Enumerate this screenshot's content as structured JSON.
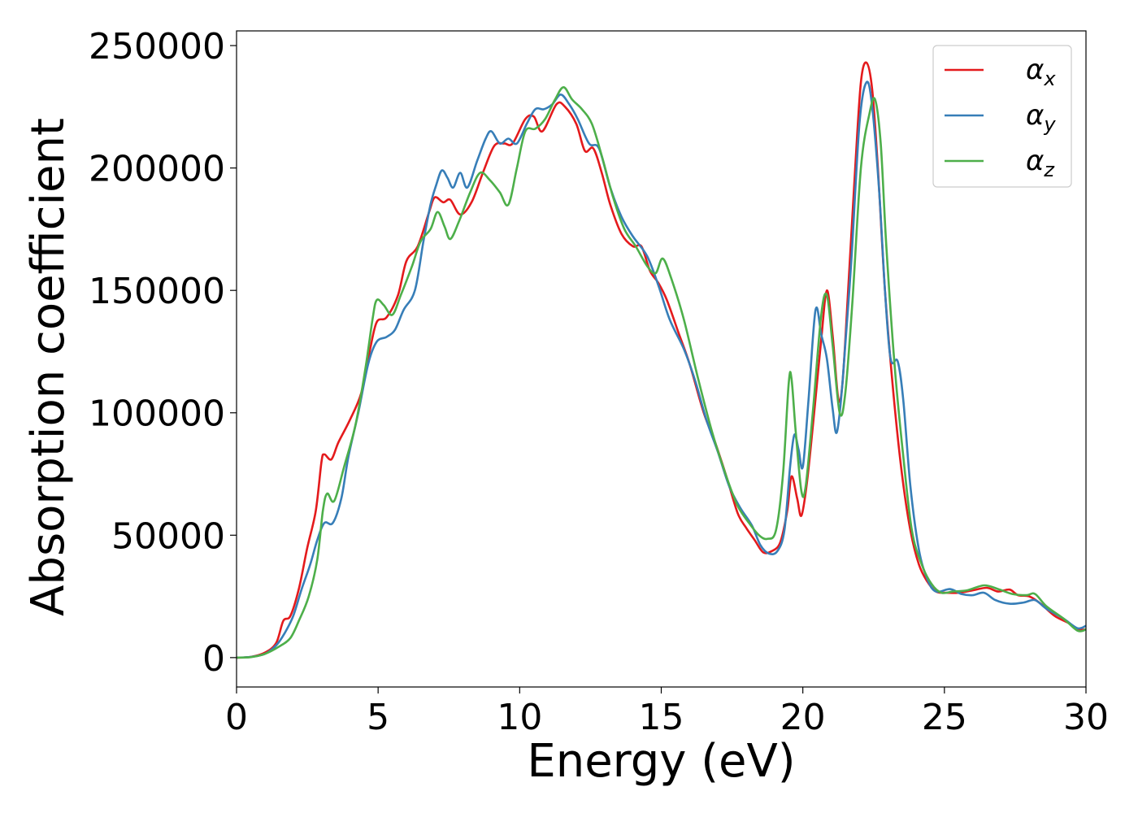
{
  "chart_data": {
    "type": "line",
    "title": "",
    "xlabel": "Energy (eV)",
    "ylabel": "Absorption coefficient",
    "xlim": [
      0,
      30
    ],
    "ylim": [
      -12000,
      256000
    ],
    "xticks": [
      0,
      5,
      10,
      15,
      20,
      25,
      30
    ],
    "yticks": [
      0,
      50000,
      100000,
      150000,
      200000,
      250000
    ],
    "grid": false,
    "legend_position": "top-right",
    "series": [
      {
        "name": "α",
        "subscript": "x",
        "color": "#e41a1c",
        "points": [
          [
            0,
            0
          ],
          [
            0.5,
            300
          ],
          [
            1.0,
            2000
          ],
          [
            1.4,
            6000
          ],
          [
            1.65,
            15000
          ],
          [
            1.9,
            17000
          ],
          [
            2.2,
            28000
          ],
          [
            2.5,
            45000
          ],
          [
            2.8,
            60000
          ],
          [
            3.0,
            80000
          ],
          [
            3.1,
            83000
          ],
          [
            3.35,
            81000
          ],
          [
            3.6,
            88000
          ],
          [
            4.0,
            97000
          ],
          [
            4.4,
            108000
          ],
          [
            4.7,
            125000
          ],
          [
            4.95,
            137000
          ],
          [
            5.3,
            139000
          ],
          [
            5.7,
            148000
          ],
          [
            6.0,
            162000
          ],
          [
            6.4,
            168000
          ],
          [
            6.8,
            182000
          ],
          [
            7.0,
            188000
          ],
          [
            7.3,
            186000
          ],
          [
            7.55,
            187000
          ],
          [
            7.9,
            181000
          ],
          [
            8.3,
            186000
          ],
          [
            8.7,
            198000
          ],
          [
            9.1,
            209000
          ],
          [
            9.45,
            210000
          ],
          [
            9.75,
            210000
          ],
          [
            10.2,
            220000
          ],
          [
            10.5,
            221000
          ],
          [
            10.8,
            215000
          ],
          [
            11.3,
            226000
          ],
          [
            11.6,
            225000
          ],
          [
            12.0,
            218000
          ],
          [
            12.3,
            207000
          ],
          [
            12.6,
            208000
          ],
          [
            12.9,
            198000
          ],
          [
            13.2,
            185000
          ],
          [
            13.6,
            173000
          ],
          [
            14.0,
            168000
          ],
          [
            14.3,
            168000
          ],
          [
            14.6,
            158000
          ],
          [
            14.9,
            153000
          ],
          [
            15.2,
            146000
          ],
          [
            15.6,
            133000
          ],
          [
            16.0,
            120000
          ],
          [
            16.5,
            100000
          ],
          [
            16.9,
            88000
          ],
          [
            17.3,
            74000
          ],
          [
            17.7,
            59000
          ],
          [
            18.0,
            53000
          ],
          [
            18.3,
            48000
          ],
          [
            18.6,
            43000
          ],
          [
            18.9,
            43500
          ],
          [
            19.2,
            47000
          ],
          [
            19.45,
            60000
          ],
          [
            19.6,
            74000
          ],
          [
            19.8,
            65000
          ],
          [
            19.95,
            58000
          ],
          [
            20.15,
            72000
          ],
          [
            20.4,
            100000
          ],
          [
            20.65,
            130000
          ],
          [
            20.85,
            150000
          ],
          [
            21.05,
            132000
          ],
          [
            21.25,
            106000
          ],
          [
            21.4,
            112000
          ],
          [
            21.6,
            150000
          ],
          [
            21.85,
            200000
          ],
          [
            22.05,
            235000
          ],
          [
            22.25,
            243000
          ],
          [
            22.45,
            232000
          ],
          [
            22.65,
            200000
          ],
          [
            22.9,
            150000
          ],
          [
            23.2,
            108000
          ],
          [
            23.5,
            75000
          ],
          [
            23.8,
            52000
          ],
          [
            24.1,
            38000
          ],
          [
            24.4,
            31000
          ],
          [
            24.7,
            27000
          ],
          [
            25.0,
            26500
          ],
          [
            25.5,
            26500
          ],
          [
            26.0,
            27500
          ],
          [
            26.5,
            28500
          ],
          [
            26.9,
            27000
          ],
          [
            27.3,
            27800
          ],
          [
            27.6,
            25500
          ],
          [
            28.0,
            25000
          ],
          [
            28.4,
            22000
          ],
          [
            28.9,
            17000
          ],
          [
            29.4,
            14000
          ],
          [
            29.7,
            11500
          ],
          [
            30.0,
            11500
          ]
        ]
      },
      {
        "name": "α",
        "subscript": "y",
        "color": "#377eb8",
        "points": [
          [
            0,
            0
          ],
          [
            0.5,
            300
          ],
          [
            1.0,
            1500
          ],
          [
            1.4,
            5000
          ],
          [
            1.7,
            10000
          ],
          [
            2.0,
            17000
          ],
          [
            2.3,
            28000
          ],
          [
            2.6,
            38000
          ],
          [
            2.85,
            48000
          ],
          [
            3.1,
            55000
          ],
          [
            3.4,
            55000
          ],
          [
            3.7,
            65000
          ],
          [
            3.95,
            82000
          ],
          [
            4.3,
            100000
          ],
          [
            4.65,
            120000
          ],
          [
            4.95,
            129000
          ],
          [
            5.3,
            131000
          ],
          [
            5.6,
            134000
          ],
          [
            5.9,
            142000
          ],
          [
            6.3,
            150000
          ],
          [
            6.6,
            170000
          ],
          [
            6.85,
            185000
          ],
          [
            7.05,
            193000
          ],
          [
            7.25,
            199000
          ],
          [
            7.45,
            196000
          ],
          [
            7.65,
            192000
          ],
          [
            7.9,
            198000
          ],
          [
            8.15,
            192000
          ],
          [
            8.5,
            203000
          ],
          [
            8.8,
            212000
          ],
          [
            9.0,
            215000
          ],
          [
            9.3,
            210000
          ],
          [
            9.6,
            212000
          ],
          [
            9.9,
            210000
          ],
          [
            10.25,
            218000
          ],
          [
            10.55,
            224000
          ],
          [
            10.85,
            224000
          ],
          [
            11.15,
            226000
          ],
          [
            11.45,
            230000
          ],
          [
            11.75,
            226000
          ],
          [
            12.05,
            220000
          ],
          [
            12.45,
            210000
          ],
          [
            12.8,
            208000
          ],
          [
            13.2,
            192000
          ],
          [
            13.6,
            180000
          ],
          [
            14.0,
            172000
          ],
          [
            14.5,
            164000
          ],
          [
            14.9,
            152000
          ],
          [
            15.3,
            138000
          ],
          [
            15.8,
            126000
          ],
          [
            16.2,
            113000
          ],
          [
            16.6,
            97000
          ],
          [
            17.0,
            84000
          ],
          [
            17.4,
            70000
          ],
          [
            17.8,
            61000
          ],
          [
            18.2,
            54000
          ],
          [
            18.5,
            46000
          ],
          [
            18.8,
            42500
          ],
          [
            19.1,
            43500
          ],
          [
            19.35,
            52000
          ],
          [
            19.55,
            78000
          ],
          [
            19.7,
            91000
          ],
          [
            19.85,
            85000
          ],
          [
            20.0,
            78000
          ],
          [
            20.2,
            105000
          ],
          [
            20.45,
            142000
          ],
          [
            20.65,
            132000
          ],
          [
            20.85,
            122000
          ],
          [
            21.05,
            102000
          ],
          [
            21.2,
            92000
          ],
          [
            21.4,
            112000
          ],
          [
            21.7,
            160000
          ],
          [
            22.0,
            218000
          ],
          [
            22.25,
            235000
          ],
          [
            22.45,
            225000
          ],
          [
            22.7,
            190000
          ],
          [
            22.9,
            150000
          ],
          [
            23.1,
            122000
          ],
          [
            23.35,
            121000
          ],
          [
            23.55,
            105000
          ],
          [
            23.8,
            70000
          ],
          [
            24.1,
            44000
          ],
          [
            24.4,
            32000
          ],
          [
            24.7,
            27000
          ],
          [
            25.2,
            28000
          ],
          [
            25.6,
            26000
          ],
          [
            26.0,
            25500
          ],
          [
            26.4,
            26500
          ],
          [
            26.8,
            23500
          ],
          [
            27.3,
            22000
          ],
          [
            27.8,
            22500
          ],
          [
            28.2,
            23500
          ],
          [
            28.6,
            20000
          ],
          [
            29.2,
            16000
          ],
          [
            29.7,
            12000
          ],
          [
            30.0,
            13000
          ]
        ]
      },
      {
        "name": "α",
        "subscript": "z",
        "color": "#4daf4a",
        "points": [
          [
            0,
            0
          ],
          [
            0.5,
            200
          ],
          [
            1.0,
            1500
          ],
          [
            1.5,
            4500
          ],
          [
            1.9,
            8000
          ],
          [
            2.2,
            15000
          ],
          [
            2.55,
            25000
          ],
          [
            2.85,
            40000
          ],
          [
            3.05,
            60000
          ],
          [
            3.2,
            67000
          ],
          [
            3.45,
            64000
          ],
          [
            3.8,
            78000
          ],
          [
            4.2,
            95000
          ],
          [
            4.55,
            118000
          ],
          [
            4.8,
            138000
          ],
          [
            4.95,
            146000
          ],
          [
            5.2,
            144000
          ],
          [
            5.5,
            140000
          ],
          [
            5.8,
            148000
          ],
          [
            6.2,
            160000
          ],
          [
            6.5,
            170000
          ],
          [
            6.85,
            175000
          ],
          [
            7.1,
            182000
          ],
          [
            7.35,
            176000
          ],
          [
            7.55,
            171000
          ],
          [
            7.85,
            178000
          ],
          [
            8.25,
            190000
          ],
          [
            8.6,
            198000
          ],
          [
            8.95,
            195000
          ],
          [
            9.3,
            190000
          ],
          [
            9.6,
            185000
          ],
          [
            9.9,
            200000
          ],
          [
            10.2,
            215000
          ],
          [
            10.55,
            216000
          ],
          [
            10.9,
            220000
          ],
          [
            11.25,
            228000
          ],
          [
            11.55,
            233000
          ],
          [
            11.85,
            228000
          ],
          [
            12.2,
            224000
          ],
          [
            12.55,
            218000
          ],
          [
            12.9,
            205000
          ],
          [
            13.3,
            188000
          ],
          [
            13.7,
            175000
          ],
          [
            14.1,
            168000
          ],
          [
            14.5,
            160000
          ],
          [
            14.8,
            157000
          ],
          [
            15.05,
            163000
          ],
          [
            15.35,
            155000
          ],
          [
            15.8,
            138000
          ],
          [
            16.3,
            114000
          ],
          [
            16.8,
            92000
          ],
          [
            17.3,
            74000
          ],
          [
            17.7,
            62000
          ],
          [
            18.1,
            55000
          ],
          [
            18.45,
            50000
          ],
          [
            18.75,
            48500
          ],
          [
            19.05,
            52000
          ],
          [
            19.3,
            75000
          ],
          [
            19.5,
            112000
          ],
          [
            19.6,
            114000
          ],
          [
            19.75,
            92000
          ],
          [
            19.95,
            68000
          ],
          [
            20.1,
            70000
          ],
          [
            20.35,
            100000
          ],
          [
            20.65,
            140000
          ],
          [
            20.85,
            148000
          ],
          [
            21.05,
            128000
          ],
          [
            21.3,
            100000
          ],
          [
            21.5,
            108000
          ],
          [
            21.75,
            145000
          ],
          [
            22.05,
            200000
          ],
          [
            22.35,
            222000
          ],
          [
            22.55,
            228000
          ],
          [
            22.75,
            210000
          ],
          [
            22.95,
            168000
          ],
          [
            23.25,
            118000
          ],
          [
            23.55,
            82000
          ],
          [
            23.85,
            52000
          ],
          [
            24.2,
            38000
          ],
          [
            24.55,
            30000
          ],
          [
            24.9,
            26500
          ],
          [
            25.3,
            27000
          ],
          [
            25.8,
            27500
          ],
          [
            26.4,
            29500
          ],
          [
            26.9,
            28000
          ],
          [
            27.4,
            26000
          ],
          [
            27.9,
            25500
          ],
          [
            28.2,
            26000
          ],
          [
            28.6,
            21000
          ],
          [
            29.2,
            16000
          ],
          [
            29.7,
            11000
          ],
          [
            30.0,
            11500
          ]
        ]
      }
    ]
  }
}
